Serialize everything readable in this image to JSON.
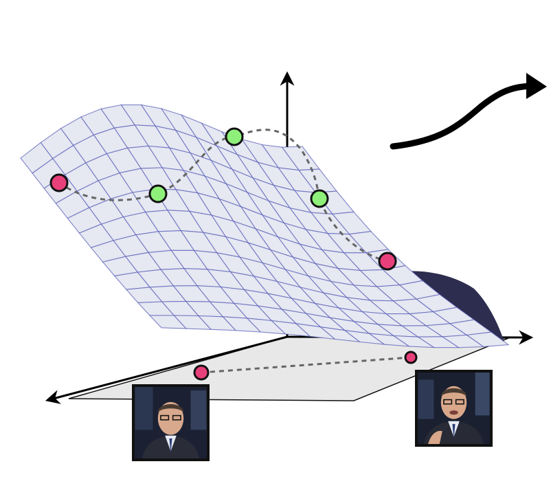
{
  "diagram": {
    "surface": {
      "fill": "#e6e8f2",
      "grid_color": "#5a5fb5",
      "shadow": "#2c2d4f"
    },
    "plane": {
      "fill": "#e8e8e8",
      "stroke": "#111111"
    },
    "latent_path": {
      "color": "#666666",
      "style": "dashed"
    },
    "endpoint_color": "#e8407a",
    "intermediate_color": "#8ef07a",
    "outline_color": "#111111",
    "arrow_color": "#000000",
    "thumbnails": [
      {
        "icon": "person-portrait-icon",
        "position_label": "start"
      },
      {
        "icon": "person-portrait-icon",
        "position_label": "end"
      }
    ]
  }
}
